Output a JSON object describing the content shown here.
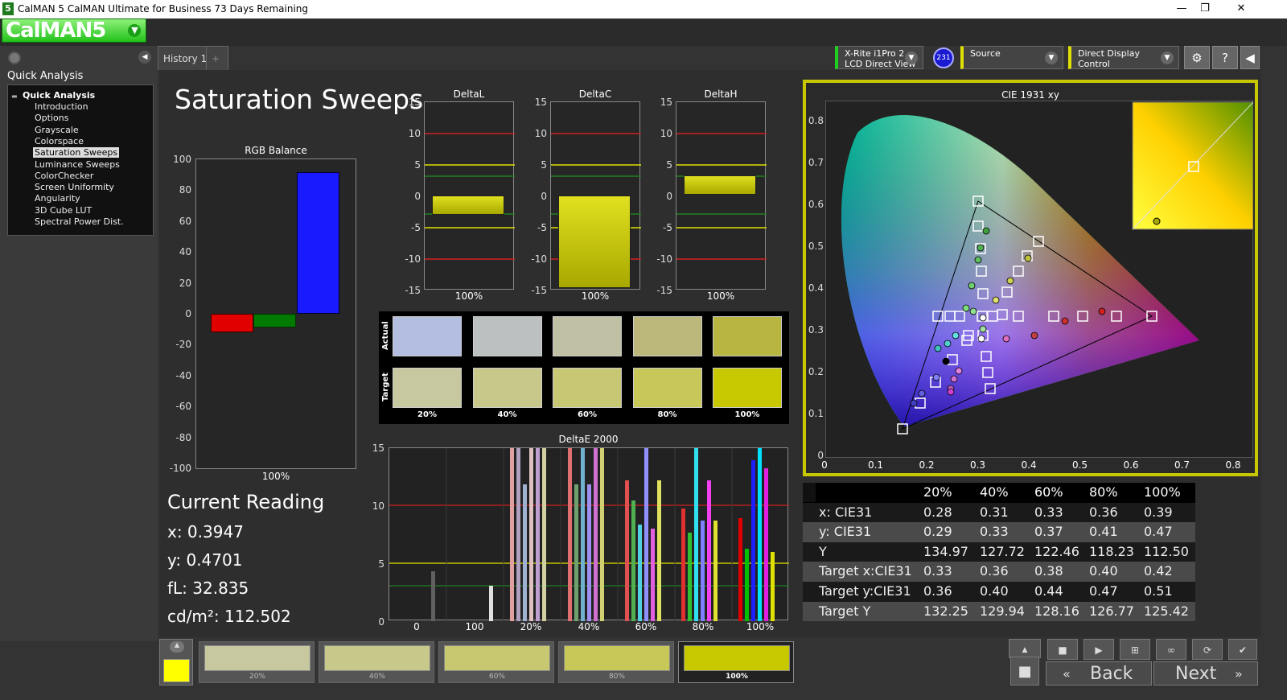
{
  "window": {
    "app_icon": "5",
    "title": "CalMAN 5 CalMAN Ultimate for Business 73 Days Remaining",
    "min": "—",
    "max": "❐",
    "close": "✕"
  },
  "logo": {
    "text": "CalMAN5"
  },
  "sidebar": {
    "title": "Quick Analysis",
    "root": "Quick Analysis",
    "items": [
      {
        "label": "Introduction"
      },
      {
        "label": "Options"
      },
      {
        "label": "Grayscale"
      },
      {
        "label": "Colorspace"
      },
      {
        "label": "Saturation Sweeps",
        "selected": true
      },
      {
        "label": "Luminance Sweeps"
      },
      {
        "label": "ColorChecker"
      },
      {
        "label": "Screen Uniformity"
      },
      {
        "label": "Angularity"
      },
      {
        "label": "3D Cube LUT"
      },
      {
        "label": "Spectral Power Dist."
      }
    ]
  },
  "tabs": [
    {
      "label": "History 1"
    },
    {
      "label": "+"
    }
  ],
  "toolbar": {
    "meter": {
      "line1": "X-Rite i1Pro 2",
      "line2": "LCD Direct View",
      "badge": "231"
    },
    "source": {
      "label": "Source"
    },
    "display": {
      "label": "Direct Display Control"
    }
  },
  "page_title": "Saturation Sweeps",
  "rgb_balance": {
    "title": "RGB Balance",
    "yticks": [
      "100",
      "80",
      "60",
      "40",
      "20",
      "0",
      "-20",
      "-40",
      "-60",
      "-80",
      "-100"
    ],
    "xlabel": "100%",
    "colors": {
      "red": "#e00000",
      "green": "#007a00",
      "blue": "#1a1aff"
    }
  },
  "delta_charts": [
    {
      "title": "DeltaL",
      "xlabel": "100%"
    },
    {
      "title": "DeltaC",
      "xlabel": "100%"
    },
    {
      "title": "DeltaH",
      "xlabel": "100%"
    }
  ],
  "delta_yticks": [
    "15",
    "10",
    "5",
    "0",
    "-5",
    "-10",
    "-15"
  ],
  "swatches": {
    "actual_label": "Actual",
    "target_label": "Target",
    "labels": [
      "20%",
      "40%",
      "60%",
      "80%",
      "100%"
    ],
    "actual": [
      "#b4bee0",
      "#bcc0c0",
      "#c0c0a4",
      "#bcb87c",
      "#b8b640"
    ],
    "target": [
      "#c8c8a0",
      "#c8c88a",
      "#c8c874",
      "#c8c85a",
      "#c8c800"
    ]
  },
  "deltae": {
    "title": "DeltaE 2000",
    "yticks": [
      "15",
      "10",
      "5",
      "0"
    ],
    "xticks": [
      "0",
      "100",
      "20%",
      "40%",
      "60%",
      "80%",
      "100%"
    ]
  },
  "current": {
    "title": "Current Reading",
    "x": "x: 0.3947",
    "y": "y: 0.4701",
    "fl": "fL: 32.835",
    "cd": "cd/m²: 112.502"
  },
  "cie": {
    "title": "CIE 1931 xy",
    "xticks": [
      "0",
      "0.1",
      "0.2",
      "0.3",
      "0.4",
      "0.5",
      "0.6",
      "0.7",
      "0.8"
    ],
    "yticks": [
      "0.8",
      "0.7",
      "0.6",
      "0.5",
      "0.4",
      "0.3",
      "0.2",
      "0.1",
      "0"
    ]
  },
  "table": {
    "headers": [
      "20%",
      "40%",
      "60%",
      "80%",
      "100%"
    ],
    "rows": [
      {
        "label": "x: CIE31",
        "values": [
          "0.28",
          "0.31",
          "0.33",
          "0.36",
          "0.39"
        ]
      },
      {
        "label": "y: CIE31",
        "values": [
          "0.29",
          "0.33",
          "0.37",
          "0.41",
          "0.47"
        ]
      },
      {
        "label": "Y",
        "values": [
          "134.97",
          "127.72",
          "122.46",
          "118.23",
          "112.50"
        ]
      },
      {
        "label": "Target x:CIE31",
        "values": [
          "0.33",
          "0.36",
          "0.38",
          "0.40",
          "0.42"
        ]
      },
      {
        "label": "Target y:CIE31",
        "values": [
          "0.36",
          "0.40",
          "0.44",
          "0.47",
          "0.51"
        ]
      },
      {
        "label": "Target Y",
        "values": [
          "132.25",
          "129.94",
          "128.16",
          "126.77",
          "125.42"
        ]
      }
    ]
  },
  "bottom": {
    "current_color": "#ffff00",
    "swatches": [
      {
        "label": "20%",
        "color": "#c8c8a0"
      },
      {
        "label": "40%",
        "color": "#c8c88a"
      },
      {
        "label": "60%",
        "color": "#c8c870"
      },
      {
        "label": "80%",
        "color": "#c8c858"
      },
      {
        "label": "100%",
        "color": "#c8c800"
      }
    ],
    "back": "Back",
    "next": "Next"
  }
}
